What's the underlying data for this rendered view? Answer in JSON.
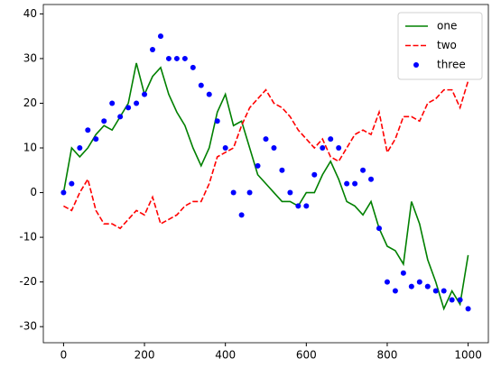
{
  "chart_data": {
    "type": "line",
    "x": [
      0,
      20,
      40,
      60,
      80,
      100,
      120,
      140,
      160,
      180,
      200,
      220,
      240,
      260,
      280,
      300,
      320,
      340,
      360,
      380,
      400,
      420,
      440,
      460,
      480,
      500,
      520,
      540,
      560,
      580,
      600,
      620,
      640,
      660,
      680,
      700,
      720,
      740,
      760,
      780,
      800,
      820,
      840,
      860,
      880,
      900,
      920,
      940,
      960,
      980,
      1000
    ],
    "series": [
      {
        "name": "one",
        "color": "#008000",
        "style": "solid",
        "values": [
          0,
          10,
          8,
          10,
          13,
          15,
          14,
          17,
          20,
          29,
          22,
          26,
          28,
          22,
          18,
          15,
          10,
          6,
          10,
          18,
          22,
          15,
          16,
          10,
          4,
          2,
          0,
          -2,
          -2,
          -3,
          0,
          0,
          4,
          7,
          3,
          -2,
          -3,
          -5,
          -2,
          -8,
          -12,
          -13,
          -16,
          -2,
          -7,
          -15,
          -20,
          -26,
          -22,
          -25,
          -14
        ]
      },
      {
        "name": "two",
        "color": "#ff0000",
        "style": "dashed",
        "values": [
          -3,
          -4,
          0,
          3,
          -4,
          -7,
          -7,
          -8,
          -6,
          -4,
          -5,
          -1,
          -7,
          -6,
          -5,
          -3,
          -2,
          -2,
          2,
          8,
          9,
          10,
          15,
          19,
          21,
          23,
          20,
          19,
          17,
          14,
          12,
          10,
          12,
          8,
          7,
          10,
          13,
          14,
          13,
          18,
          9,
          12,
          17,
          17,
          16,
          20,
          21,
          23,
          23,
          19,
          25
        ]
      },
      {
        "name": "three",
        "color": "#0000ff",
        "style": "dots",
        "values": [
          0,
          2,
          10,
          14,
          12,
          16,
          20,
          17,
          19,
          20,
          22,
          32,
          35,
          30,
          30,
          30,
          28,
          24,
          22,
          16,
          10,
          0,
          -5,
          0,
          6,
          12,
          10,
          5,
          0,
          -3,
          -3,
          4,
          10,
          12,
          10,
          2,
          2,
          5,
          3,
          -8,
          -20,
          -22,
          -18,
          -21,
          -20,
          -21,
          -22,
          -22,
          -24,
          -24,
          -26
        ]
      }
    ],
    "xlim": [
      -50,
      1050
    ],
    "xticks": [
      0,
      200,
      400,
      600,
      800,
      1000
    ],
    "ylim": [
      -33.6,
      42.1
    ],
    "yticks": [
      -30,
      -20,
      -10,
      0,
      10,
      20,
      30,
      40
    ],
    "legend": "upper right"
  }
}
